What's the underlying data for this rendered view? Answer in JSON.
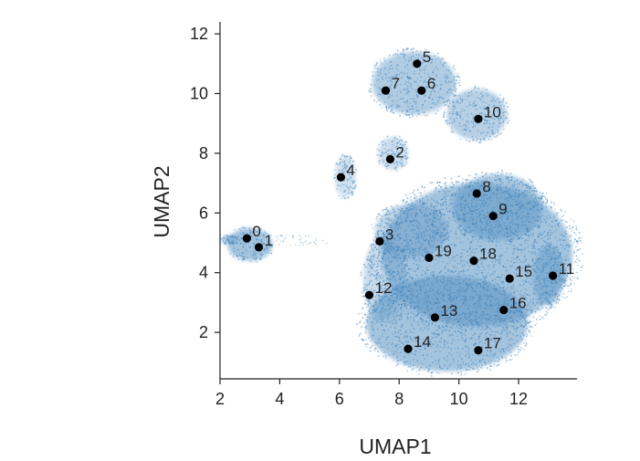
{
  "chart_data": {
    "type": "scatter",
    "xlabel": "UMAP1",
    "ylabel": "UMAP2",
    "xlim": [
      2,
      14
    ],
    "ylim": [
      0.5,
      12.5
    ],
    "xticks": [
      2,
      4,
      6,
      8,
      10,
      12
    ],
    "yticks": [
      2,
      4,
      6,
      8,
      10,
      12
    ],
    "grid": false,
    "legend": "none",
    "colors": {
      "cells": "#3a7fb8",
      "centroid": "#000000",
      "axis": "#222222"
    },
    "series": [
      {
        "points": [
          {
            "label": "0",
            "x": 2.9,
            "y": 5.15
          },
          {
            "label": "1",
            "x": 3.3,
            "y": 4.85
          },
          {
            "label": "2",
            "x": 7.7,
            "y": 7.8
          },
          {
            "label": "3",
            "x": 7.35,
            "y": 5.05
          },
          {
            "label": "4",
            "x": 6.05,
            "y": 7.2
          },
          {
            "label": "5",
            "x": 8.6,
            "y": 11.0
          },
          {
            "label": "6",
            "x": 8.75,
            "y": 10.1
          },
          {
            "label": "7",
            "x": 7.55,
            "y": 10.1
          },
          {
            "label": "8",
            "x": 10.6,
            "y": 6.65
          },
          {
            "label": "9",
            "x": 11.15,
            "y": 5.9
          },
          {
            "label": "10",
            "x": 10.65,
            "y": 9.15
          },
          {
            "label": "11",
            "x": 13.15,
            "y": 3.9
          },
          {
            "label": "12",
            "x": 7.0,
            "y": 3.25
          },
          {
            "label": "13",
            "x": 9.2,
            "y": 2.5
          },
          {
            "label": "14",
            "x": 8.3,
            "y": 1.45
          },
          {
            "label": "15",
            "x": 11.7,
            "y": 3.8
          },
          {
            "label": "16",
            "x": 11.5,
            "y": 2.75
          },
          {
            "label": "17",
            "x": 10.65,
            "y": 1.4
          },
          {
            "label": "18",
            "x": 10.5,
            "y": 4.4
          },
          {
            "label": "19",
            "x": 9.0,
            "y": 4.5
          }
        ]
      }
    ]
  }
}
